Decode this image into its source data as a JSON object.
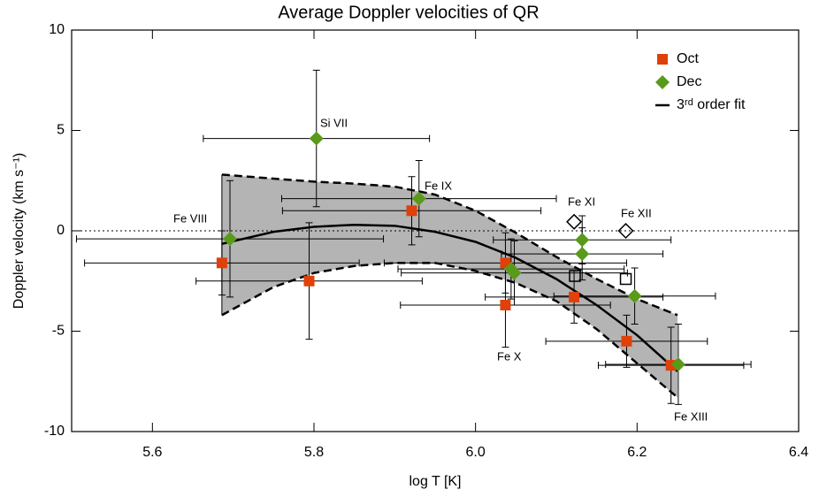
{
  "chart_data": {
    "type": "scatter",
    "title": "Average Doppler velocities of QR",
    "x_label": "log T [K]",
    "y_label": "Doppler velocity (km s⁻¹)",
    "xlim": [
      5.5,
      6.4
    ],
    "xticks": [
      5.6,
      5.8,
      {
        "value": 6.0,
        "label": "6.0"
      },
      6.2,
      6.4
    ],
    "ylim": [
      -10,
      10
    ],
    "yticks": [
      -10,
      -5,
      0,
      5,
      10
    ],
    "zero_line": true,
    "series": [
      {
        "name": "Oct",
        "color": "#e0400a",
        "marker": "square",
        "x": [
          5.686,
          5.794,
          5.921,
          6.037,
          6.037,
          6.122,
          6.187,
          6.242
        ],
        "values": [
          -1.6,
          -2.5,
          1.0,
          -1.6,
          -3.7,
          -3.3,
          -5.5,
          -6.7
        ],
        "xerr": [
          0.17,
          0.14,
          0.16,
          0.15,
          0.13,
          0.11,
          0.1,
          0.09
        ],
        "yerr": [
          1.6,
          2.9,
          1.7,
          1.5,
          2.1,
          1.3,
          1.3,
          1.9
        ]
      },
      {
        "name": "Dec",
        "color": "#5a9a1a",
        "marker": "diamond",
        "x": [
          5.696,
          5.803,
          5.93,
          6.044,
          6.048,
          6.132,
          6.132,
          6.197,
          6.251
        ],
        "values": [
          -0.4,
          4.6,
          1.6,
          -1.9,
          -2.1,
          -0.45,
          -1.15,
          -3.25,
          -6.65
        ],
        "xerr": [
          0.19,
          0.14,
          0.17,
          0.14,
          0.14,
          0.11,
          0.1,
          0.1,
          0.09
        ],
        "yerr": [
          2.9,
          3.4,
          1.9,
          1.5,
          1.6,
          1.2,
          1.3,
          1.4,
          2.0
        ]
      },
      {
        "color": "#000000",
        "marker": "open-square",
        "x": [
          6.123,
          6.186
        ],
        "values": [
          -2.25,
          -2.4
        ]
      },
      {
        "color": "#000000",
        "marker": "open-diamond",
        "x": [
          6.122,
          6.186
        ],
        "values": [
          0.45,
          0
        ]
      },
      {
        "name": "3ʳᵈ order fit",
        "color": "#000000",
        "marker": "line",
        "x": [
          5.686,
          5.75,
          5.8,
          5.85,
          5.9,
          5.95,
          6.0,
          6.05,
          6.1,
          6.15,
          6.2,
          6.25
        ],
        "values": [
          -0.65,
          -0.05,
          0.2,
          0.3,
          0.25,
          -0.05,
          -0.55,
          -1.35,
          -2.4,
          -3.7,
          -5.2,
          -7.0
        ],
        "band_upper": [
          2.8,
          2.6,
          2.45,
          2.35,
          2.2,
          1.8,
          1.0,
          -0.1,
          -1.3,
          -2.4,
          -3.4,
          -4.2
        ],
        "band_lower": [
          -4.2,
          -2.8,
          -2.1,
          -1.75,
          -1.6,
          -1.6,
          -2.0,
          -2.6,
          -3.5,
          -4.9,
          -6.6,
          -8.3
        ],
        "band_color": "#b4b4b4"
      }
    ],
    "annotations": [
      "Si VII",
      "Fe IX",
      "Fe VIII",
      "Fe XI",
      "Fe XII",
      "Fe X",
      "Fe XIII"
    ]
  }
}
